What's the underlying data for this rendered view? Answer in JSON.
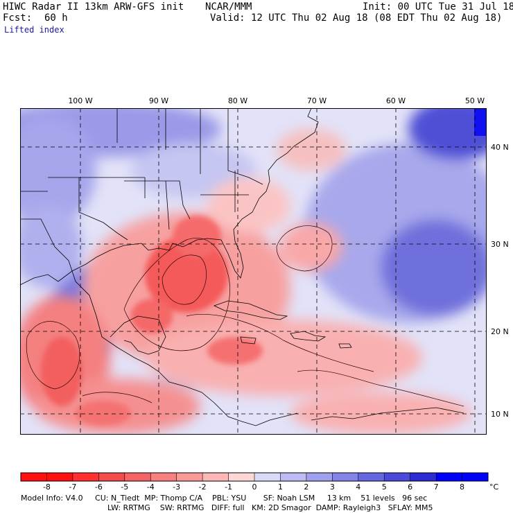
{
  "header": {
    "title": "HIWC Radar II 13km ARW-GFS init",
    "agency": "NCAR/MMM",
    "init": "Init: 00 UTC Tue 31 Jul 18",
    "fcst_label": "Fcst:",
    "fcst_value": "60 h",
    "valid": "Valid: 12 UTC Thu 02 Aug 18 (08 EDT Thu 02 Aug 18)",
    "field": "Lifted index"
  },
  "map": {
    "lon_labels": [
      "100 W",
      "90 W",
      "80 W",
      "70 W",
      "60 W",
      "50 W"
    ],
    "lat_labels": [
      "40 N",
      "30 N",
      "20 N",
      "10 N"
    ],
    "colors": {
      "neg8": "#ff1010",
      "neg7": "#ff3030",
      "neg6": "#f44a4a",
      "neg5": "#f56464",
      "neg4": "#f77f7f",
      "neg3": "#f99a9a",
      "neg2": "#fbb6b6",
      "neg1": "#fdd6d6",
      "zero": "#ffffff",
      "pos1": "#dadaf8",
      "pos2": "#bcbcf2",
      "pos3": "#a0a0ec",
      "pos4": "#8484e6",
      "pos5": "#6767e0",
      "pos6": "#4a4ad8",
      "pos7": "#2c2cd2",
      "pos8": "#0000ff"
    }
  },
  "legend": {
    "ticks": [
      "-8",
      "-7",
      "-6",
      "-5",
      "-4",
      "-3",
      "-2",
      "-1",
      "0",
      "1",
      "2",
      "3",
      "4",
      "5",
      "6",
      "7",
      "8"
    ],
    "unit": "°C"
  },
  "footer": {
    "line1": "Model Info: V4.0     CU: N_Tiedt  MP: Thomp C/A    PBL: YSU       SF: Noah LSM     13 km    51 levels   96 sec",
    "line2": "LW: RRTMG    SW: RRTMG   DIFF: full   KM: 2D Smagor  DAMP: Rayleigh3   SFLAY: MM5"
  }
}
